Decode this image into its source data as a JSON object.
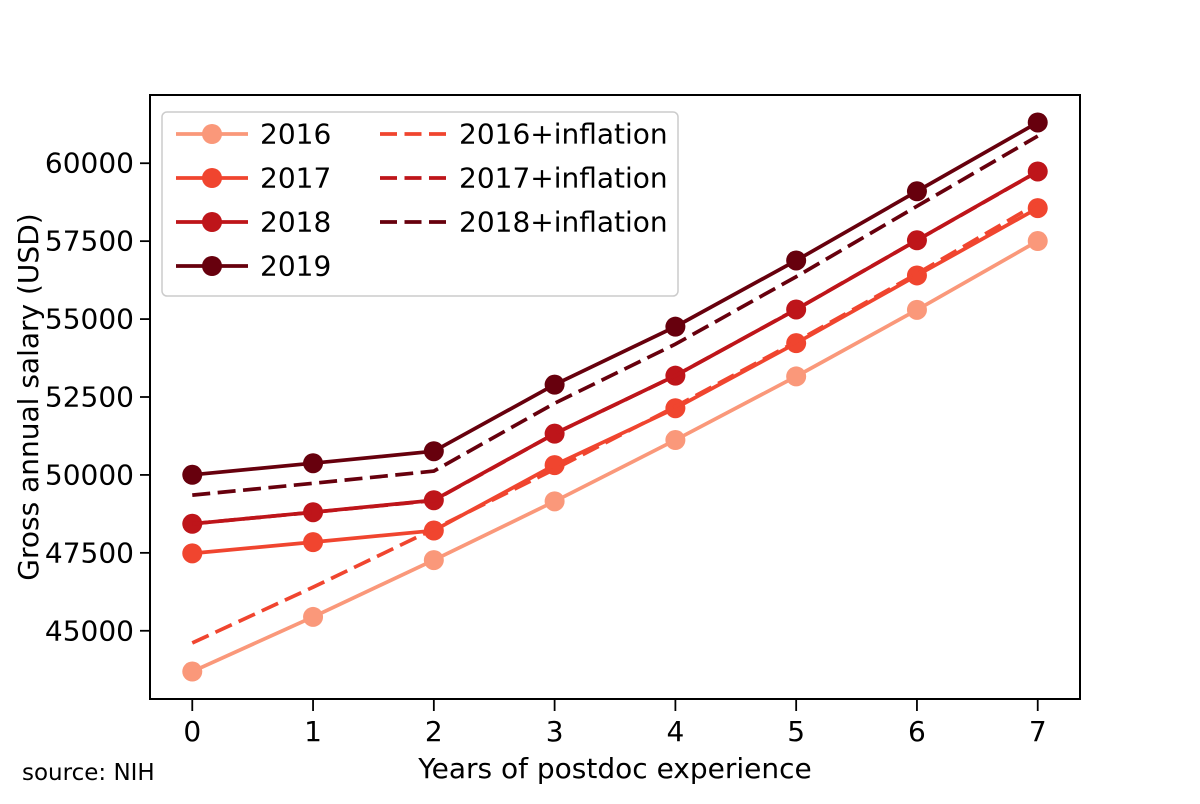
{
  "chart_data": {
    "type": "line",
    "title": "",
    "xlabel": "Years of postdoc experience",
    "ylabel": "Gross annual salary (USD)",
    "source_note": "source: NIH",
    "x": [
      0,
      1,
      2,
      3,
      4,
      5,
      6,
      7
    ],
    "xtick_labels": [
      "0",
      "1",
      "2",
      "3",
      "4",
      "5",
      "6",
      "7"
    ],
    "yticks": [
      45000,
      47500,
      50000,
      52500,
      55000,
      57500,
      60000
    ],
    "xlim": [
      -0.35,
      7.35
    ],
    "ylim": [
      42811,
      62189
    ],
    "grid": false,
    "legend_position": "upper-left",
    "legend_columns": [
      [
        "2016",
        "2017",
        "2018",
        "2019"
      ],
      [
        "2016+inflation",
        "2017+inflation",
        "2018+inflation"
      ]
    ],
    "axis_color": "#000000",
    "legend_border_color": "#cccccc",
    "series": [
      {
        "name": "2016",
        "line": "solid",
        "marker": "circle",
        "color": "#FA987A",
        "values": [
          43692,
          45444,
          47268,
          49152,
          51120,
          53160,
          55296,
          57504
        ]
      },
      {
        "name": "2017",
        "line": "solid",
        "marker": "circle",
        "color": "#F0452F",
        "values": [
          47484,
          47844,
          48216,
          50316,
          52140,
          54228,
          56400,
          58560
        ]
      },
      {
        "name": "2018",
        "line": "solid",
        "marker": "circle",
        "color": "#BE151A",
        "values": [
          48432,
          48804,
          49188,
          51324,
          53184,
          55308,
          57528,
          59736
        ]
      },
      {
        "name": "2019",
        "line": "solid",
        "marker": "circle",
        "color": "#67000D",
        "values": [
          50004,
          50376,
          50760,
          52896,
          54756,
          56880,
          59100,
          61308
        ]
      },
      {
        "name": "2016+inflation",
        "line": "dashed",
        "marker": "none",
        "color": "#F0452F",
        "values": [
          44610,
          46398,
          48261,
          50184,
          52194,
          54276,
          56457,
          58712
        ]
      },
      {
        "name": "2017+inflation",
        "line": "dashed",
        "marker": "none",
        "color": "#BE151A",
        "values": [
          48434,
          48801,
          49180,
          51322,
          53183,
          55313,
          57528,
          59731
        ]
      },
      {
        "name": "2018+inflation",
        "line": "dashed",
        "marker": "none",
        "color": "#67000D",
        "values": [
          49352,
          49731,
          50123,
          52299,
          54195,
          56359,
          58621,
          60871
        ]
      }
    ]
  }
}
